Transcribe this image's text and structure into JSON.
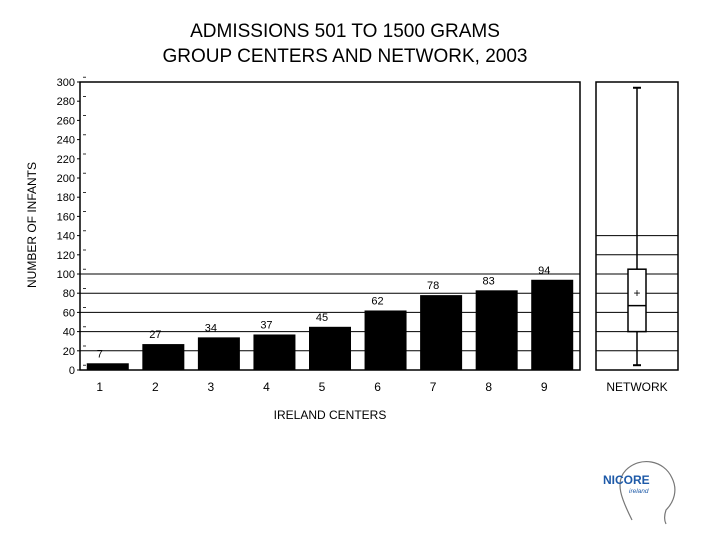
{
  "chart_data": [
    {
      "type": "bar",
      "title": "ADMISSIONS 501 TO 1500 GRAMS",
      "subtitle": "GROUP CENTERS AND NETWORK, 2003",
      "xlabel": "IRELAND CENTERS",
      "ylabel": "NUMBER OF INFANTS",
      "ylim": [
        0,
        300
      ],
      "yticks": [
        "0",
        "20",
        "40",
        "60",
        "80",
        "100",
        "120",
        "140",
        "160",
        "180",
        "200",
        "220",
        "240",
        "260",
        "280",
        "300"
      ],
      "grid": true,
      "categories": [
        "1",
        "2",
        "3",
        "4",
        "5",
        "6",
        "7",
        "8",
        "9"
      ],
      "values": [
        7,
        27,
        34,
        37,
        45,
        62,
        78,
        83,
        94
      ],
      "data_labels": [
        "7",
        "27",
        "34",
        "37",
        "45",
        "62",
        "78",
        "83",
        "94"
      ]
    },
    {
      "type": "box",
      "category": "NETWORK",
      "ylim": [
        0,
        300
      ],
      "min": 5,
      "q1": 40,
      "median": 67,
      "mean": 80,
      "q3": 105,
      "max": 294
    }
  ],
  "brand": {
    "name": "NICORE",
    "sub": "ireland",
    "color": "#1e5aa8"
  },
  "colors": {
    "bar": "#000000",
    "grid": "#000000"
  }
}
